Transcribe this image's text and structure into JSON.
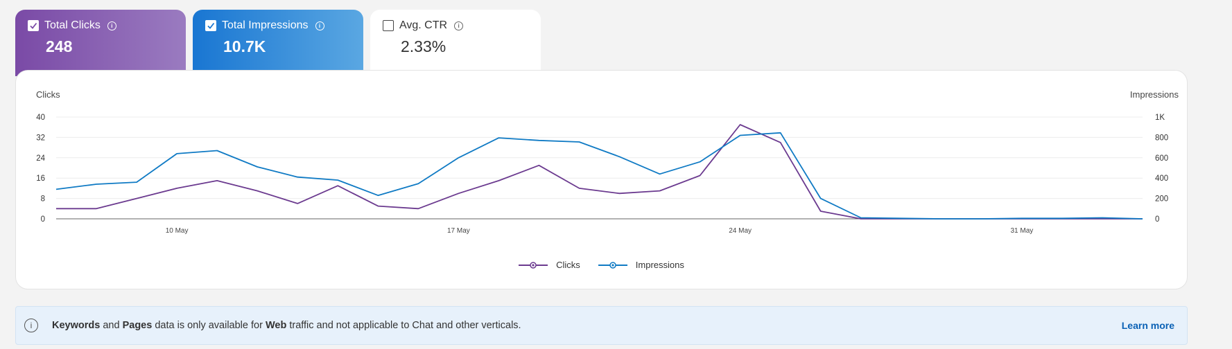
{
  "metric_cards": {
    "clicks": {
      "label": "Total Clicks",
      "value": "248",
      "checked": true
    },
    "impressions": {
      "label": "Total Impressions",
      "value": "10.7K",
      "checked": true
    },
    "ctr": {
      "label": "Avg. CTR",
      "value": "2.33%",
      "checked": false
    }
  },
  "chart": {
    "left_axis_title": "Clicks",
    "right_axis_title": "Impressions"
  },
  "chart_data": {
    "type": "line",
    "x": [
      "7 May",
      "8 May",
      "9 May",
      "10 May",
      "11 May",
      "12 May",
      "13 May",
      "14 May",
      "15 May",
      "16 May",
      "17 May",
      "18 May",
      "19 May",
      "20 May",
      "21 May",
      "22 May",
      "23 May",
      "24 May",
      "25 May",
      "26 May",
      "27 May",
      "28 May",
      "29 May",
      "30 May",
      "31 May",
      "1 Jun",
      "2 Jun",
      "3 Jun"
    ],
    "x_tick_labels": [
      "10 May",
      "17 May",
      "24 May",
      "31 May"
    ],
    "y_left": {
      "label": "Clicks",
      "ticks": [
        "0",
        "8",
        "16",
        "24",
        "32",
        "40"
      ],
      "range": [
        0,
        40
      ]
    },
    "y_right": {
      "label": "Impressions",
      "ticks": [
        "0",
        "200",
        "400",
        "600",
        "800",
        "1K"
      ],
      "range": [
        0,
        1000
      ]
    },
    "series": [
      {
        "name": "Clicks",
        "axis": "left",
        "color": "#6b3a8f",
        "values": [
          4,
          4,
          8,
          12,
          15,
          11,
          6,
          13,
          5,
          4,
          10,
          15,
          21,
          12,
          10,
          11,
          17,
          37,
          30,
          3,
          0,
          0,
          0,
          0,
          0,
          0,
          0,
          0
        ]
      },
      {
        "name": "Impressions",
        "axis": "right",
        "color": "#0f7ac4",
        "values": [
          290,
          340,
          360,
          640,
          670,
          510,
          410,
          380,
          230,
          345,
          600,
          795,
          770,
          755,
          610,
          440,
          560,
          820,
          845,
          200,
          10,
          5,
          0,
          0,
          5,
          5,
          10,
          0
        ]
      }
    ],
    "grid": true,
    "legend_position": "bottom"
  },
  "notice": {
    "word_keywords": "Keywords",
    "word_and": "and",
    "word_pages": "Pages",
    "text_mid": "data is only available for",
    "word_web": "Web",
    "text_end": "traffic and not applicable to Chat and other verticals.",
    "link": "Learn more"
  }
}
